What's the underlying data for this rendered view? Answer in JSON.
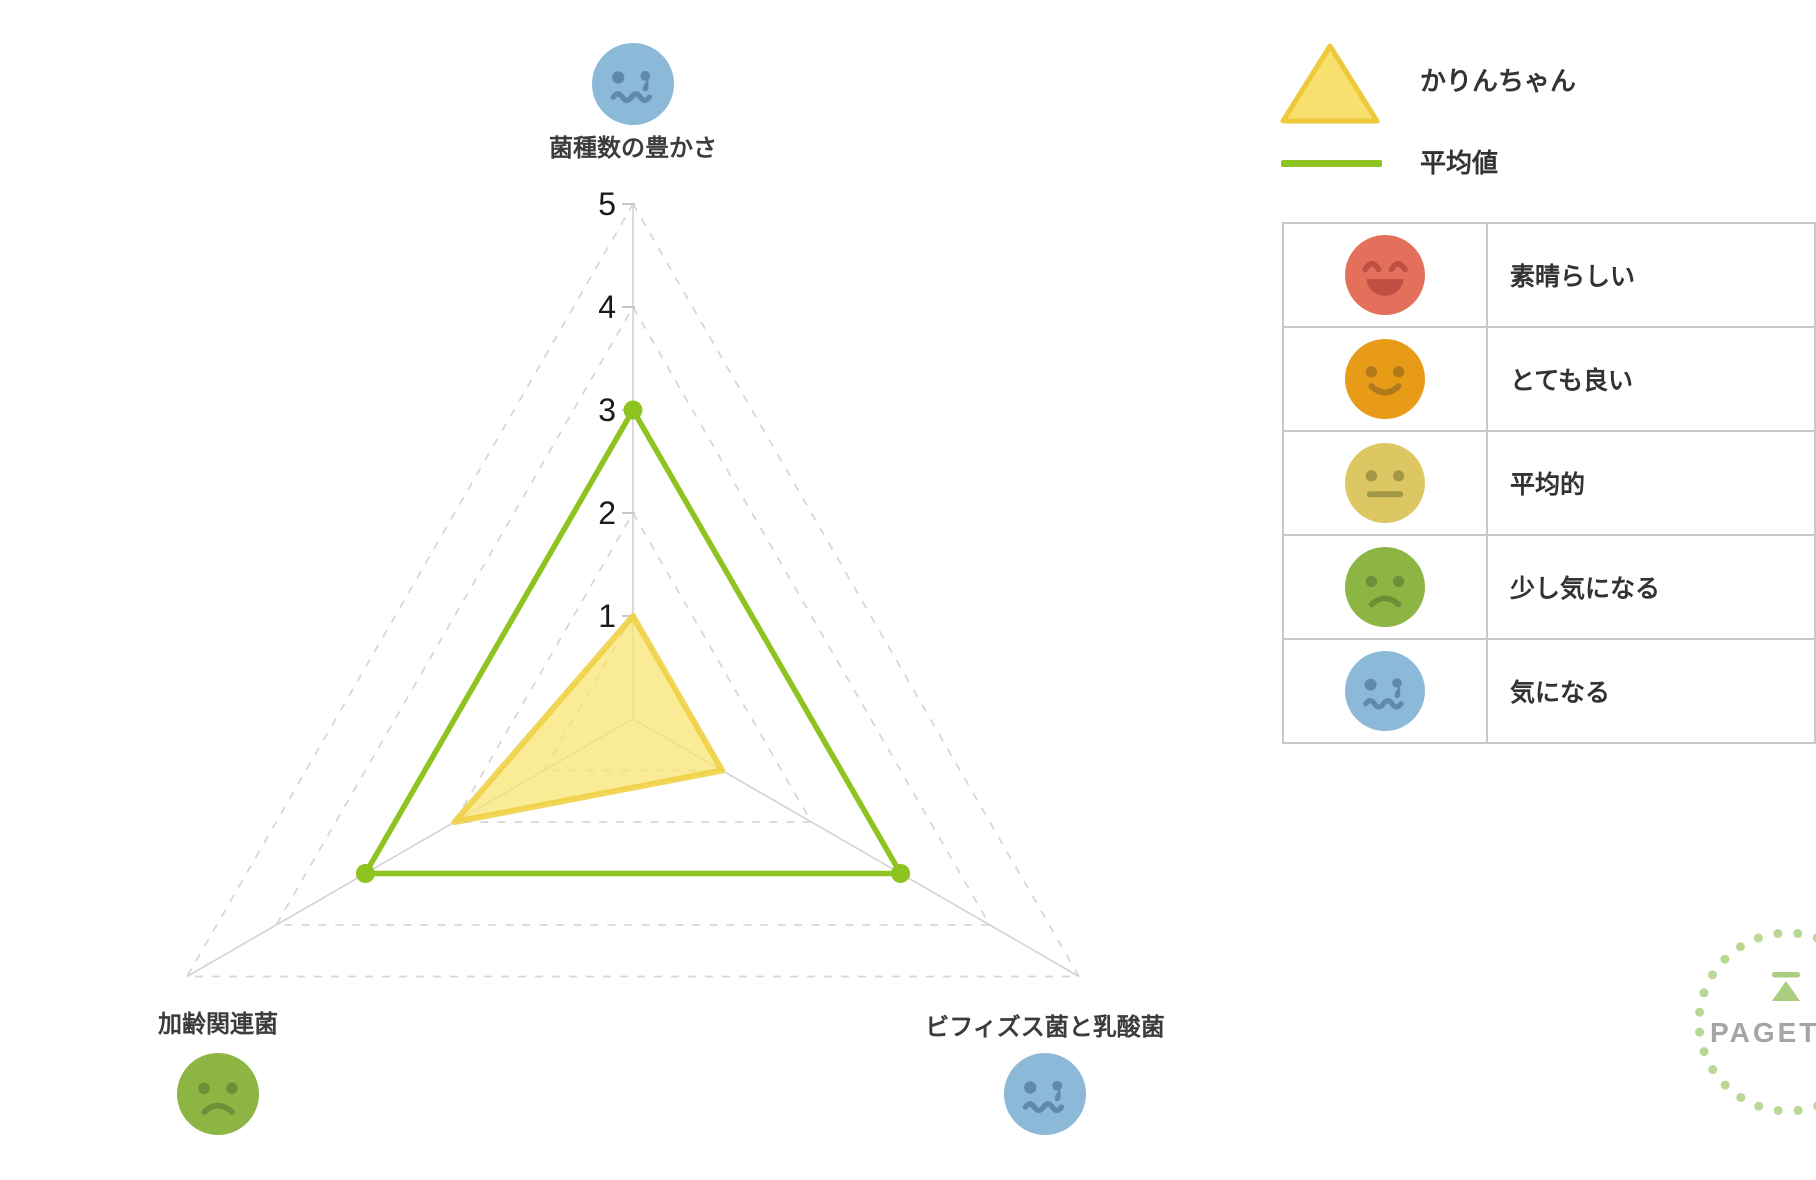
{
  "chart_data": {
    "type": "radar",
    "categories": [
      "菌種数の豊かさ",
      "ビフィズス菌と乳酸菌",
      "加齢関連菌"
    ],
    "series": [
      {
        "name": "かりんちゃん",
        "values": [
          1,
          1,
          2
        ],
        "fill": "#f8e46e",
        "stroke": "#eecf3e",
        "style": "filled-area"
      },
      {
        "name": "平均値",
        "values": [
          3,
          3,
          3
        ],
        "stroke": "#8fc31f",
        "style": "line-with-dots"
      }
    ],
    "ticks": [
      1,
      2,
      3,
      4,
      5
    ],
    "max": 5,
    "axis_range": [
      0,
      5
    ],
    "grid": "dashed-triangles",
    "legend_position": "top-right"
  },
  "axis_faces": [
    "worried",
    "worried",
    "frown"
  ],
  "face_palette": {
    "laugh": {
      "body": "#e4705c",
      "feature": "#bf4f43"
    },
    "smile": {
      "body": "#e89b16",
      "feature": "#b0791c"
    },
    "neutral": {
      "body": "#ddc763",
      "feature": "#a29744"
    },
    "frown": {
      "body": "#8cb544",
      "feature": "#6d8f38"
    },
    "worried": {
      "body": "#8db9d9",
      "feature": "#6089ab"
    }
  },
  "rating_table": {
    "rows": [
      {
        "icon": "laugh-face-icon",
        "face": "laugh",
        "label": "素晴らしい"
      },
      {
        "icon": "smile-face-icon",
        "face": "smile",
        "label": "とても良い"
      },
      {
        "icon": "neutral-face-icon",
        "face": "neutral",
        "label": "平均的"
      },
      {
        "icon": "frown-face-icon",
        "face": "frown",
        "label": "少し気になる"
      },
      {
        "icon": "worried-face-icon",
        "face": "worried",
        "label": "気になる"
      }
    ]
  },
  "logo": {
    "text": "PAGET",
    "green": "#a9ce7e",
    "dot_green": "#b9d795",
    "gray": "#a5a5a5"
  },
  "colors": {
    "grid": "#d7d7d7",
    "axis": "#d2d2d2",
    "tick": "#c9c9c9",
    "tick_text": "#1a1a1a",
    "table_border": "#c9c9c9",
    "average_green": "#8fc31f",
    "karin_yellow": "#f8e46e"
  }
}
